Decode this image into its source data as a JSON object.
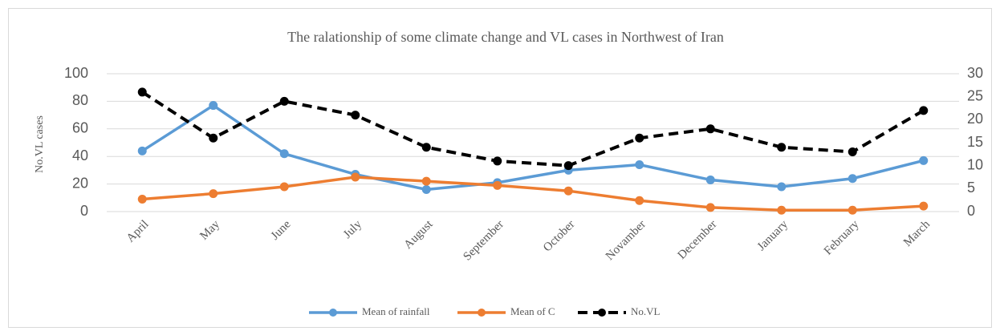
{
  "chart_data": {
    "type": "line",
    "title": "The ralationship  of some climate  change and VL cases in Northwest of Iran",
    "y_label": "No.VL cases",
    "categories": [
      "April",
      "May",
      "June",
      "July",
      "August",
      "September",
      "October",
      "Novamber",
      "December",
      "January",
      "February",
      "March"
    ],
    "series": [
      {
        "name": "Mean of rainfall",
        "color": "#5b9bd5",
        "values": [
          44,
          77,
          42,
          27,
          16,
          21,
          30,
          34,
          23,
          18,
          24,
          37
        ]
      },
      {
        "name": "Mean of C",
        "color": "#ed7d31",
        "values": [
          9,
          13,
          18,
          25,
          22,
          19,
          15,
          8,
          3,
          1,
          1,
          4
        ]
      },
      {
        "name": "No.VL",
        "color": "#000000",
        "axis": "y2",
        "dashed": true,
        "values": [
          26,
          16,
          24,
          21,
          14,
          11,
          10,
          16,
          18,
          14,
          13,
          22
        ]
      }
    ],
    "ylim": [
      0,
      100
    ],
    "yticks": [
      0,
      20,
      40,
      60,
      80,
      100
    ],
    "y2lim": [
      0,
      30
    ],
    "y2ticks": [
      0,
      5,
      10,
      15,
      20,
      25,
      30
    ],
    "grid": true,
    "legend": "bottom"
  }
}
